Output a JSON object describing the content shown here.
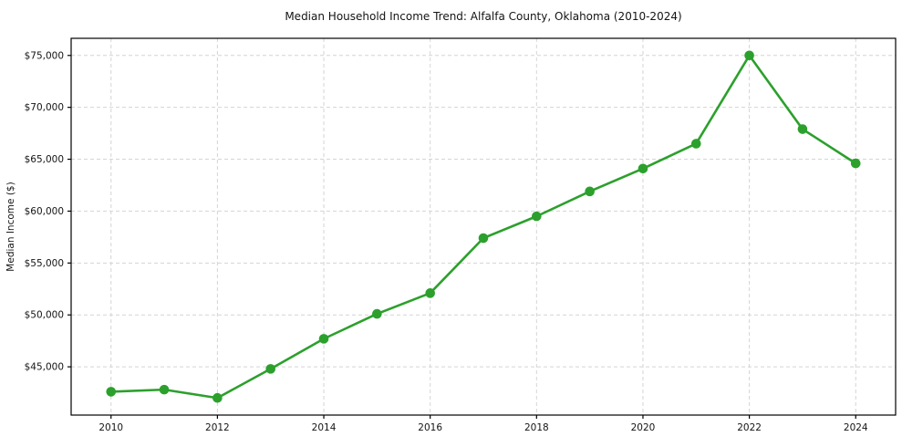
{
  "chart_data": {
    "type": "line",
    "title": "Median Household Income Trend: Alfalfa County, Oklahoma (2010-2024)",
    "xlabel": "",
    "ylabel": "Median Income ($)",
    "series": [
      {
        "name": "Median Household Income",
        "x": [
          2010,
          2011,
          2012,
          2013,
          2014,
          2015,
          2016,
          2017,
          2018,
          2019,
          2020,
          2021,
          2022,
          2023,
          2024
        ],
        "values": [
          42600,
          42800,
          42000,
          44800,
          47700,
          50100,
          52100,
          57400,
          59500,
          61900,
          64100,
          66500,
          75000,
          67900,
          64600
        ]
      }
    ],
    "xlim": [
      2009.25,
      2024.75
    ],
    "ylim": [
      40350,
      76650
    ],
    "x_ticks": [
      2010,
      2012,
      2014,
      2016,
      2018,
      2020,
      2022,
      2024
    ],
    "x_tick_labels": [
      "2010",
      "2012",
      "2014",
      "2016",
      "2018",
      "2020",
      "2022",
      "2024"
    ],
    "y_ticks": [
      45000,
      50000,
      55000,
      60000,
      65000,
      70000,
      75000
    ],
    "y_tick_labels": [
      "$45,000",
      "$50,000",
      "$55,000",
      "$60,000",
      "$65,000",
      "$70,000",
      "$75,000"
    ],
    "grid": true,
    "legend": "none",
    "line_color": "#2ca02c",
    "marker_color": "#2ca02c",
    "grid_color": "#d4d4d4",
    "axis_color": "#000000",
    "background_color": "#ffffff"
  }
}
